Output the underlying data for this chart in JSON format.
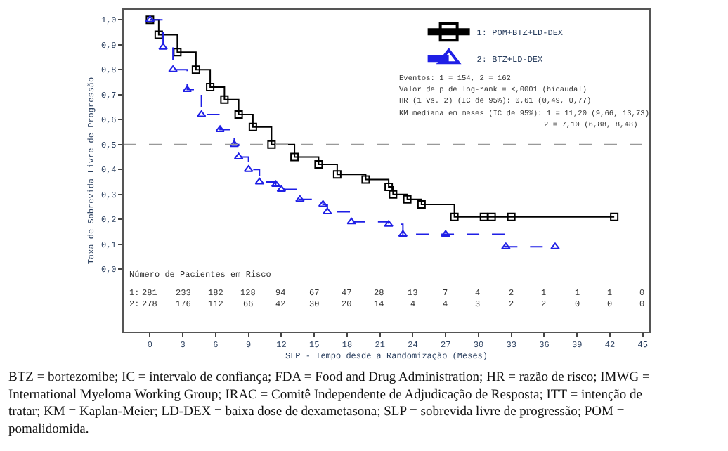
{
  "chart_data": {
    "type": "step",
    "xlabel": "SLP - Tempo desde a Randomização (Meses)",
    "ylabel": "Taxa de Sobrevida Livre de Progressão",
    "xlim": [
      -2.4,
      45.6
    ],
    "xticks": [
      0,
      3,
      6,
      9,
      12,
      15,
      18,
      21,
      24,
      27,
      30,
      33,
      36,
      39,
      42,
      45
    ],
    "ylim": [
      -0.25,
      1.04
    ],
    "yticks": [
      {
        "value": 0,
        "label": "0,0"
      },
      {
        "value": 0.1,
        "label": "0,1"
      },
      {
        "value": 0.2,
        "label": "0,2"
      },
      {
        "value": 0.3,
        "label": "0,3"
      },
      {
        "value": 0.4,
        "label": "0,4"
      },
      {
        "value": 0.5,
        "label": "0,5"
      },
      {
        "value": 0.6,
        "label": "0,6"
      },
      {
        "value": 0.7,
        "label": "0,7"
      },
      {
        "value": 0.8,
        "label": "0,8"
      },
      {
        "value": 0.9,
        "label": "0,9"
      },
      {
        "value": 1.0,
        "label": "1,0"
      }
    ],
    "legend": "top right",
    "ref_lines": [
      {
        "axis": "y",
        "value": 0.5,
        "color": "#999999",
        "line_style": "dashed"
      }
    ],
    "series": [
      {
        "name": "1: POM+BTZ+LD-DEX",
        "color": "#000000",
        "marker": "square",
        "line_style": "solid",
        "x": [
          0,
          0.8,
          2.5,
          4.2,
          5.5,
          6.8,
          8.1,
          9.4,
          11.1,
          13.2,
          15.4,
          17.1,
          19.7,
          21.8,
          22.2,
          23.5,
          24.8,
          27.8,
          30.5,
          31.2,
          33,
          42.4
        ],
        "values": [
          1.0,
          0.94,
          0.87,
          0.8,
          0.73,
          0.68,
          0.62,
          0.57,
          0.5,
          0.45,
          0.42,
          0.38,
          0.36,
          0.33,
          0.3,
          0.28,
          0.26,
          0.21,
          0.21,
          0.21,
          0.21,
          0.21
        ]
      },
      {
        "name": "2: BTZ+LD-DEX",
        "color": "#1f1fe6",
        "marker": "triangle",
        "line_style": "dashed",
        "x": [
          0,
          1.2,
          2.1,
          3.4,
          4.7,
          6.4,
          7.7,
          8.1,
          9.0,
          10.0,
          11.5,
          12.0,
          13.7,
          15.8,
          16.2,
          18.4,
          21.8,
          23.1,
          27.0,
          32.5,
          37.0
        ],
        "values": [
          1.0,
          0.89,
          0.8,
          0.72,
          0.62,
          0.56,
          0.5,
          0.45,
          0.4,
          0.35,
          0.34,
          0.32,
          0.28,
          0.26,
          0.23,
          0.19,
          0.18,
          0.14,
          0.14,
          0.09,
          0.09
        ]
      }
    ],
    "annotations": [
      "Eventos: 1 = 154, 2 = 162",
      "Valor de p de log-rank = <,0001 (bicaudal)",
      "HR (1 vs. 2) (IC de 95%): 0,61 (0,49, 0,77)",
      "KM mediana em meses (IC de 95%): 1 = 11,20 (9,66, 13,73)",
      "2 = 7,10 (6,88, 8,48)",
      "Número de Pacientes em Risco",
      "1:",
      "281",
      "233",
      "182",
      "128",
      "94",
      "67",
      "47",
      "28",
      "13",
      "7",
      "4",
      "2",
      "1",
      "1",
      "1",
      "0",
      "2:",
      "278",
      "176",
      "112",
      "66",
      "42",
      "30",
      "20",
      "14",
      "4",
      "4",
      "3",
      "2",
      "2",
      "0",
      "0",
      "0",
      "BTZ = bortezomibe; IC = intervalo de confiança; FDA = Food and Drug Administration; HR = razão de risco; IMWG = International Myeloma Working Group; IRAC = Comitê Independente de Adjudicação de Resposta; ITT = intenção de tratar; KM = Kaplan-Meier; LD-DEX = baixa dose de dexametasona; SLP = sobrevida livre de progressão; POM = pomalidomida."
    ]
  }
}
